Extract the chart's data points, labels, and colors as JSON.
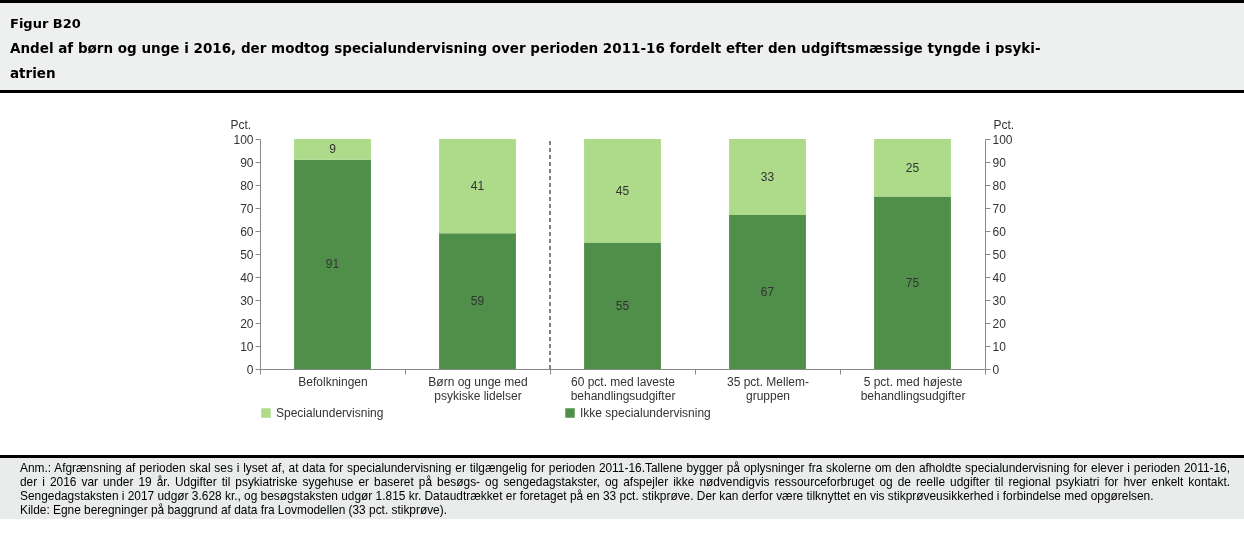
{
  "chart_data": {
    "type": "bar",
    "title": "Figur B20",
    "subtitle": "Andel af børn og unge i 2016, der modtog specialundervisning over perioden 2011-16 fordelt efter den udgiftsmæssige tyngde i psyki-atrien",
    "categories": [
      "Befolkningen",
      "Børn og unge med\npsykiske lidelser",
      "60 pct. med laveste\nbehandlingsudgifter",
      "35 pct. Mellem-\ngruppen",
      "5 pct. med højeste\nbehandlingsudgifter"
    ],
    "series": [
      {
        "name": "Ikke specialundervisning",
        "color": "#4f8f4a",
        "values": [
          91,
          59,
          55,
          67,
          75
        ]
      },
      {
        "name": "Specialundervisning",
        "color": "#addb8a",
        "values": [
          9,
          41,
          45,
          33,
          25
        ]
      }
    ],
    "stacked": true,
    "data_labels": true,
    "ylabel": "Pct.",
    "ylim": [
      0,
      100
    ],
    "yticks": [
      0,
      10,
      20,
      30,
      40,
      50,
      60,
      70,
      80,
      90,
      100
    ],
    "y2label": "Pct.",
    "y2lim": [
      0,
      100
    ],
    "y2ticks": [
      0,
      10,
      20,
      30,
      40,
      50,
      60,
      70,
      80,
      90,
      100
    ],
    "legend": "bottom",
    "grid": false,
    "annotations": [
      "Anm.: Afgrænsning af perioden skal ses i lyset af, at data for specialundervisning er tilgængelig for perioden 2011-16.Tallene bygger på oplysninger fra skolerne om den afholdte specialundervisning for elever i perioden 2011-16, der i 2016 var under 19 år. Udgifter til psykiatriske sygehuse er baseret på besøgs- og sengedagstakster, og afspejler ikke nødvendigvis ressourceforbruget og de reelle udgifter til regional psykiatri for hver enkelt kontakt. Sengedagstaksten i 2017 udgør 3.628 kr., og besøgstaksten udgør 1.815 kr. Dataudtrækket er foretaget på en 33 pct. stikprøve. Der kan derfor være tilknyttet en vis stikprøveusikkerhed i forbindelse med opgørelsen.",
      "Kilde: Egne beregninger på baggrund af data fra Lovmodellen (33 pct. stikprøve)."
    ]
  }
}
